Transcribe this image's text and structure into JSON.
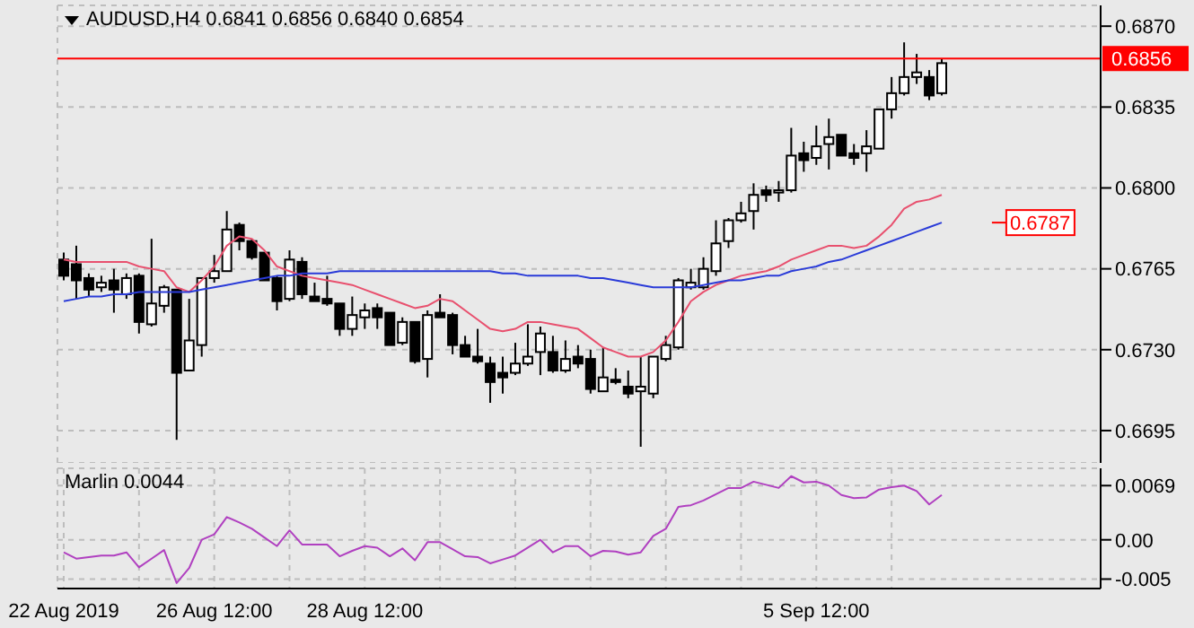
{
  "chart_data": [
    {
      "type": "candlestick",
      "title": "AUDUSD,H4  0.6841 0.6856 0.6840 0.6854",
      "tick_labels": "y",
      "grid": true,
      "categories": [
        null,
        null,
        null,
        null,
        null,
        null,
        null,
        null,
        null,
        null,
        null,
        null,
        null,
        null,
        null,
        null,
        null,
        null,
        null,
        null,
        null,
        null,
        null,
        null,
        null,
        null,
        null,
        null,
        null,
        null,
        null,
        null,
        null,
        null,
        null,
        null,
        null,
        null,
        null,
        null,
        null,
        null,
        null,
        null,
        null,
        null,
        null,
        null,
        null,
        null,
        null,
        null,
        null,
        null,
        null,
        null,
        null,
        null,
        null,
        null,
        null,
        null,
        null,
        null,
        null,
        null,
        null,
        null,
        null,
        null,
        null
      ],
      "ohlc": [
        [
          0.6769,
          0.6772,
          0.676,
          0.6762
        ],
        [
          0.6767,
          0.6775,
          0.6752,
          0.676
        ],
        [
          0.6761,
          0.6763,
          0.6753,
          0.6756
        ],
        [
          0.6757,
          0.6762,
          0.6755,
          0.6759
        ],
        [
          0.676,
          0.6765,
          0.6746,
          0.6756
        ],
        [
          0.6754,
          0.6763,
          0.6752,
          0.6761
        ],
        [
          0.6762,
          0.6763,
          0.6737,
          0.6742
        ],
        [
          0.6741,
          0.6778,
          0.674,
          0.675
        ],
        [
          0.6749,
          0.6758,
          0.6746,
          0.6757
        ],
        [
          0.6756,
          0.6756,
          0.6691,
          0.672
        ],
        [
          0.6721,
          0.6752,
          0.6721,
          0.6734
        ],
        [
          0.6732,
          0.6761,
          0.6727,
          0.6761
        ],
        [
          0.6761,
          0.6771,
          0.6759,
          0.6764
        ],
        [
          0.6764,
          0.679,
          0.6764,
          0.6782
        ],
        [
          0.6784,
          0.6785,
          0.6773,
          0.6777
        ],
        [
          0.6777,
          0.6778,
          0.6769,
          0.677
        ],
        [
          0.6772,
          0.6772,
          0.676,
          0.676
        ],
        [
          0.6761,
          0.6762,
          0.6747,
          0.6751
        ],
        [
          0.6752,
          0.6773,
          0.6751,
          0.6769
        ],
        [
          0.6768,
          0.677,
          0.6752,
          0.6754
        ],
        [
          0.6753,
          0.6759,
          0.6751,
          0.6751
        ],
        [
          0.6752,
          0.6762,
          0.6749,
          0.675
        ],
        [
          0.675,
          0.675,
          0.6736,
          0.6739
        ],
        [
          0.6739,
          0.6753,
          0.6736,
          0.6745
        ],
        [
          0.6744,
          0.675,
          0.6739,
          0.6747
        ],
        [
          0.6748,
          0.675,
          0.6739,
          0.6744
        ],
        [
          0.6746,
          0.6746,
          0.6732,
          0.6732
        ],
        [
          0.6733,
          0.6744,
          0.6732,
          0.6742
        ],
        [
          0.6742,
          0.6742,
          0.6724,
          0.6725
        ],
        [
          0.6726,
          0.6747,
          0.6718,
          0.6745
        ],
        [
          0.6746,
          0.6754,
          0.6744,
          0.6744
        ],
        [
          0.6745,
          0.6746,
          0.6728,
          0.6732
        ],
        [
          0.6732,
          0.6736,
          0.6727,
          0.6727
        ],
        [
          0.6727,
          0.6739,
          0.6724,
          0.6725
        ],
        [
          0.6724,
          0.6727,
          0.6707,
          0.6716
        ],
        [
          0.672,
          0.6727,
          0.6711,
          0.6718
        ],
        [
          0.672,
          0.6733,
          0.6719,
          0.6724
        ],
        [
          0.6724,
          0.6741,
          0.6723,
          0.6727
        ],
        [
          0.6729,
          0.674,
          0.6719,
          0.6737
        ],
        [
          0.6729,
          0.6736,
          0.672,
          0.6721
        ],
        [
          0.6721,
          0.6734,
          0.672,
          0.6726
        ],
        [
          0.6727,
          0.6732,
          0.6722,
          0.6724
        ],
        [
          0.6726,
          0.673,
          0.6711,
          0.6713
        ],
        [
          0.6712,
          0.6731,
          0.6712,
          0.6718
        ],
        [
          0.6717,
          0.6722,
          0.6715,
          0.6716
        ],
        [
          0.6714,
          0.6721,
          0.6709,
          0.6711
        ],
        [
          0.6712,
          0.6727,
          0.6688,
          0.6714
        ],
        [
          0.6711,
          0.6727,
          0.6709,
          0.6727
        ],
        [
          0.6726,
          0.6736,
          0.6725,
          0.6732
        ],
        [
          0.6731,
          0.6761,
          0.673,
          0.676
        ],
        [
          0.6757,
          0.6765,
          0.6756,
          0.6759
        ],
        [
          0.6757,
          0.677,
          0.6756,
          0.6765
        ],
        [
          0.6764,
          0.6786,
          0.6762,
          0.6776
        ],
        [
          0.6777,
          0.6787,
          0.6774,
          0.6786
        ],
        [
          0.6786,
          0.6794,
          0.6785,
          0.6789
        ],
        [
          0.679,
          0.6802,
          0.6782,
          0.6797
        ],
        [
          0.6799,
          0.6801,
          0.6794,
          0.6797
        ],
        [
          0.6798,
          0.6803,
          0.6794,
          0.6799
        ],
        [
          0.6799,
          0.6826,
          0.6798,
          0.6814
        ],
        [
          0.6815,
          0.682,
          0.6807,
          0.6812
        ],
        [
          0.6813,
          0.6827,
          0.681,
          0.6818
        ],
        [
          0.6819,
          0.683,
          0.6808,
          0.6822
        ],
        [
          0.6823,
          0.6823,
          0.6814,
          0.6814
        ],
        [
          0.6815,
          0.6819,
          0.681,
          0.6813
        ],
        [
          0.6815,
          0.6825,
          0.6807,
          0.6818
        ],
        [
          0.6817,
          0.6834,
          0.6817,
          0.6834
        ],
        [
          0.6834,
          0.6848,
          0.683,
          0.6841
        ],
        [
          0.6841,
          0.6863,
          0.684,
          0.6848
        ],
        [
          0.6848,
          0.6858,
          0.6845,
          0.685
        ],
        [
          0.6848,
          0.6851,
          0.6838,
          0.684
        ],
        [
          0.6841,
          0.6856,
          0.684,
          0.6854
        ]
      ],
      "series": [
        {
          "type": "line",
          "color": "#e8506e",
          "values": [
            0.6769,
            0.6768,
            0.6768,
            0.6768,
            0.6768,
            0.6768,
            0.6766,
            0.6765,
            0.6764,
            0.6757,
            0.6755,
            0.676,
            0.6766,
            0.6775,
            0.6779,
            0.6778,
            0.6773,
            0.6766,
            0.6764,
            0.6762,
            0.6761,
            0.676,
            0.6759,
            0.6758,
            0.6756,
            0.6754,
            0.6752,
            0.675,
            0.6748,
            0.6749,
            0.6752,
            0.6751,
            0.6747,
            0.6743,
            0.6739,
            0.6738,
            0.6739,
            0.6742,
            0.6742,
            0.6741,
            0.674,
            0.6739,
            0.6735,
            0.6731,
            0.6729,
            0.6727,
            0.6727,
            0.6729,
            0.6734,
            0.6742,
            0.6751,
            0.6755,
            0.6758,
            0.676,
            0.6762,
            0.6763,
            0.6764,
            0.6766,
            0.6769,
            0.6771,
            0.6773,
            0.6775,
            0.6775,
            0.6774,
            0.6775,
            0.6779,
            0.6784,
            0.6791,
            0.6794,
            0.6795,
            0.6797
          ]
        },
        {
          "type": "line",
          "color": "#2a3bd8",
          "values": [
            0.6751,
            0.6752,
            0.6753,
            0.6753,
            0.6754,
            0.6754,
            0.6755,
            0.6755,
            0.6755,
            0.6755,
            0.6755,
            0.6756,
            0.6757,
            0.6758,
            0.6759,
            0.676,
            0.6761,
            0.6762,
            0.6762,
            0.6763,
            0.6763,
            0.6763,
            0.6764,
            0.6764,
            0.6764,
            0.6764,
            0.6764,
            0.6764,
            0.6764,
            0.6764,
            0.6764,
            0.6764,
            0.6764,
            0.6764,
            0.6764,
            0.6763,
            0.6763,
            0.6762,
            0.6762,
            0.6762,
            0.6762,
            0.6762,
            0.6761,
            0.6761,
            0.676,
            0.6759,
            0.6758,
            0.6757,
            0.6757,
            0.6757,
            0.6757,
            0.6758,
            0.6759,
            0.676,
            0.676,
            0.6761,
            0.6762,
            0.6762,
            0.6764,
            0.6765,
            0.6766,
            0.6768,
            0.6769,
            0.6771,
            0.6773,
            0.6775,
            0.6777,
            0.6779,
            0.6781,
            0.6783,
            0.6785
          ]
        }
      ],
      "ylim": [
        0.6681,
        0.6879
      ],
      "yticks": [
        0.6695,
        {
          "value": 0.673,
          "label": "0.6730"
        },
        0.6765,
        {
          "value": 0.68,
          "label": "0.6800"
        },
        0.6835,
        {
          "value": 0.687,
          "label": "0.6870"
        }
      ],
      "ref_lines": [
        {
          "axis": "y",
          "value": 0.6856,
          "label": "0.6856",
          "color": "#ff0000"
        }
      ],
      "annotations": [
        "0.6787"
      ]
    },
    {
      "type": "line",
      "title": "Marlin 0.0044",
      "grid": true,
      "categories": [
        "22 Aug 2019",
        null,
        null,
        null,
        null,
        null,
        null,
        null,
        null,
        null,
        null,
        null,
        "26 Aug 12:00",
        null,
        null,
        null,
        null,
        null,
        null,
        null,
        null,
        null,
        null,
        null,
        "28 Aug 12:00",
        null,
        null,
        null,
        null,
        null,
        null,
        null,
        null,
        null,
        null,
        null,
        null,
        null,
        null,
        null,
        null,
        null,
        null,
        null,
        null,
        null,
        null,
        null,
        null,
        null,
        null,
        null,
        null,
        null,
        null,
        null,
        null,
        null,
        null,
        null,
        "5 Sep 12:00",
        null,
        null,
        null,
        null,
        null,
        null,
        null,
        null,
        null,
        null
      ],
      "series": [
        {
          "color": "#b040c0",
          "values": [
            -0.0016,
            -0.0024,
            -0.0022,
            -0.002,
            -0.002,
            -0.0016,
            -0.0035,
            -0.0024,
            -0.0013,
            -0.0055,
            -0.0036,
            0.0,
            0.0007,
            0.0029,
            0.0022,
            0.0014,
            0.0003,
            -0.0008,
            0.0012,
            -0.0006,
            -0.0006,
            -0.0006,
            -0.0021,
            -0.0014,
            -0.0008,
            -0.001,
            -0.0021,
            -0.0011,
            -0.0026,
            -0.0003,
            -0.0003,
            -0.0012,
            -0.0021,
            -0.0022,
            -0.003,
            -0.0025,
            -0.002,
            -0.001,
            0.0,
            -0.0016,
            -0.0008,
            -0.0008,
            -0.0021,
            -0.0014,
            -0.0015,
            -0.0019,
            -0.0016,
            0.0005,
            0.0014,
            0.0042,
            0.0044,
            0.005,
            0.0058,
            0.0066,
            0.0066,
            0.0074,
            0.007,
            0.0066,
            0.0081,
            0.0073,
            0.0074,
            0.0069,
            0.0057,
            0.0053,
            0.0054,
            0.0064,
            0.0067,
            0.0069,
            0.0062,
            0.0045,
            0.0057
          ]
        }
      ],
      "ylim": [
        -0.0062,
        0.0091
      ],
      "yticks": [
        -0.005,
        {
          "value": 0,
          "label": "0.00"
        },
        0.0069
      ]
    }
  ]
}
